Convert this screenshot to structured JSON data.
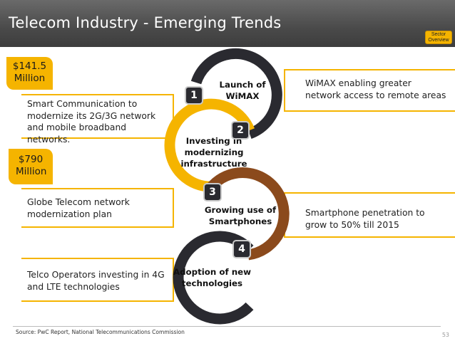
{
  "header": {
    "title": "Telecom Industry - Emerging Trends",
    "sector_button": "Sector Overview"
  },
  "left": [
    {
      "badge": "$141.5 Million",
      "text": "Smart Communication to modernize its 2G/3G network and mobile broadband networks."
    },
    {
      "badge": "$790 Million",
      "text": "Globe Telecom network modernization plan"
    },
    {
      "badge": "",
      "text": "Telco Operators investing in 4G and LTE technologies"
    }
  ],
  "right": [
    {
      "text": "WiMAX enabling greater network access to remote areas"
    },
    {
      "text": "Smartphone penetration to grow to 50% till 2015"
    }
  ],
  "steps": [
    {
      "num": "1",
      "label": "Launch of WiMAX",
      "color": "#2a2a30"
    },
    {
      "num": "2",
      "label": "Investing in modernizing infrastructure",
      "color": "#f5b400"
    },
    {
      "num": "3",
      "label": "Growing use of Smartphones",
      "color": "#8b4a1c"
    },
    {
      "num": "4",
      "label": "Adoption of new technologies",
      "color": "#2a2a30"
    }
  ],
  "footer": {
    "source": "Source: PwC Report, National Telecommunications Commission",
    "page": "53"
  },
  "colors": {
    "accent": "#f5b400",
    "dark": "#2a2a30",
    "brown": "#8b4a1c",
    "header": "#4a4a4a"
  }
}
